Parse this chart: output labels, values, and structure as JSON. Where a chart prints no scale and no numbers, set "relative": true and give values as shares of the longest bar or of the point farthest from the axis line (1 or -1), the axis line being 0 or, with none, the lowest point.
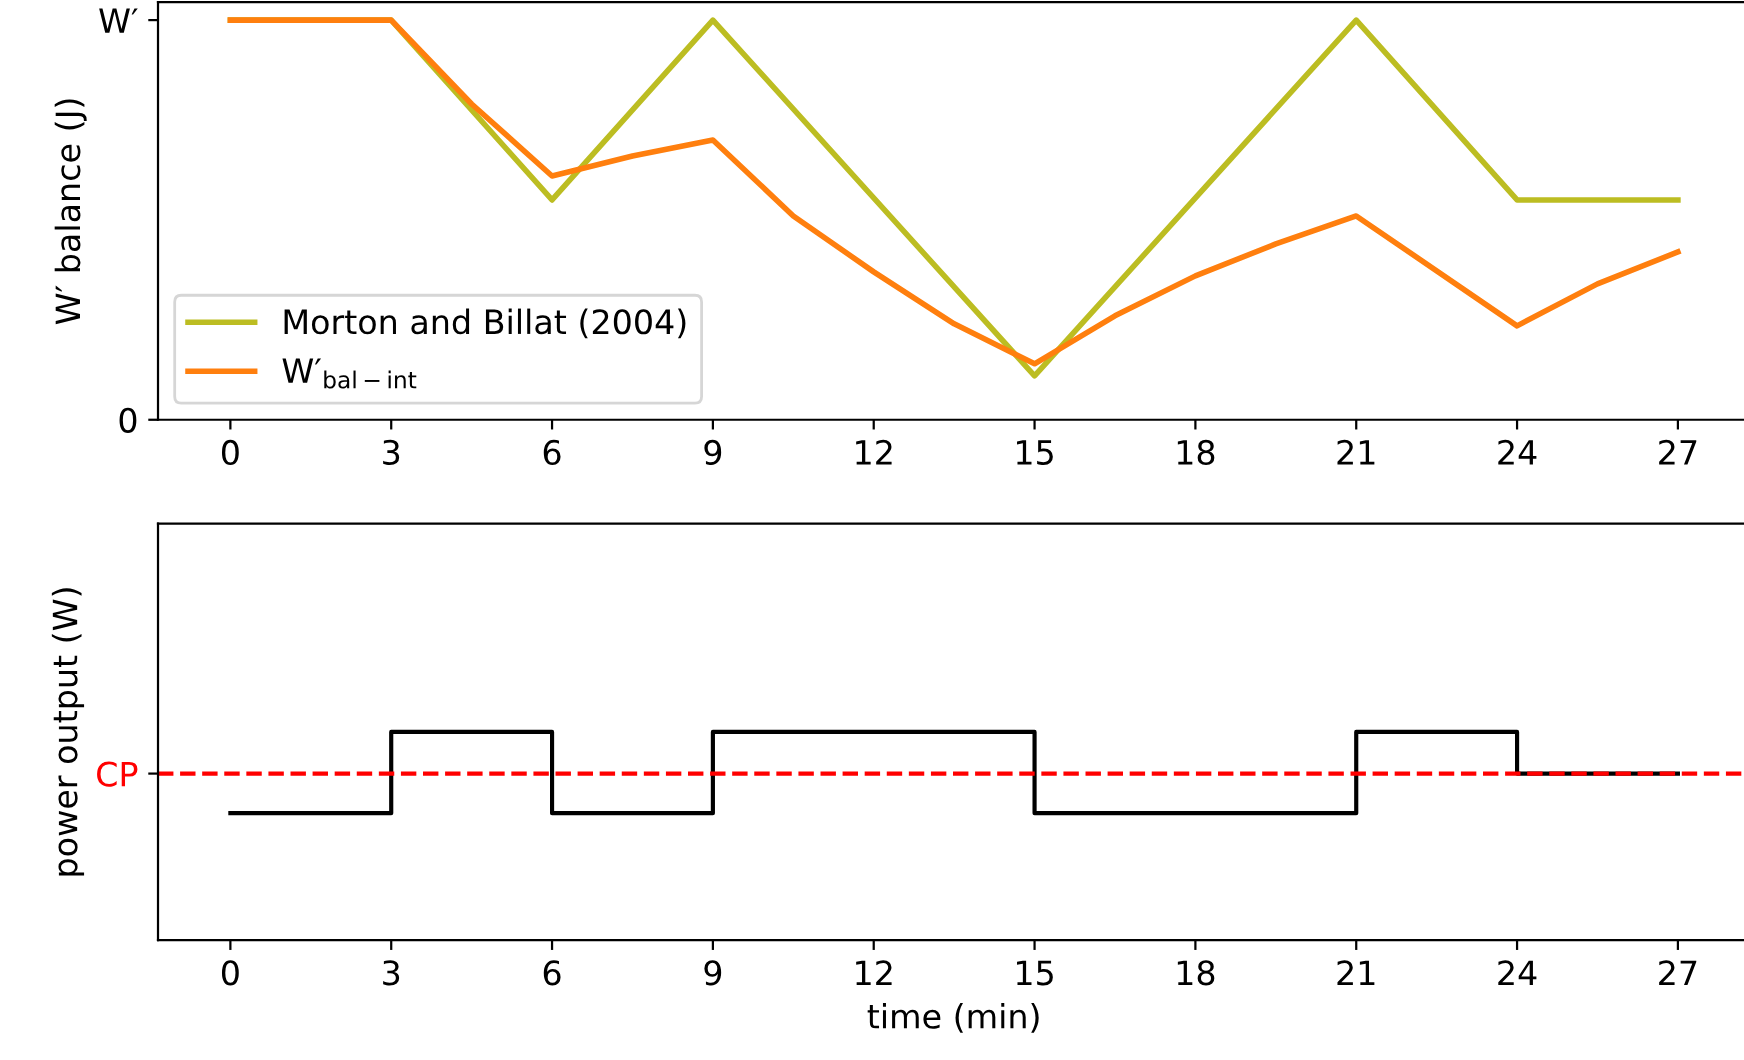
{
  "chart_data": [
    {
      "type": "line",
      "relative": true,
      "ylabel": "W′ balance (J)",
      "xlim": [
        -1.35,
        28.35
      ],
      "xticks": [
        0,
        3,
        6,
        9,
        12,
        15,
        18,
        21,
        24,
        27
      ],
      "annotations": [
        "0",
        "W′"
      ],
      "legend": "bottom left",
      "grid": false,
      "series": [
        {
          "name": "Morton and Billat (2004)",
          "color": "#bcbd22",
          "x": [
            0,
            3,
            6,
            9,
            15,
            21,
            24,
            27
          ],
          "values": [
            1,
            1,
            0.55,
            1,
            0.11,
            1,
            0.55,
            0.55
          ]
        },
        {
          "name": "W′$_{bal−int}$",
          "color": "#ff7f0e",
          "x": [
            0,
            3,
            4.5,
            6,
            7.5,
            9,
            10.5,
            12,
            13.5,
            15,
            16.5,
            18,
            19.5,
            21,
            24,
            25.5,
            27
          ],
          "values": [
            1,
            1,
            0.79,
            0.61,
            0.66,
            0.7,
            0.51,
            0.37,
            0.24,
            0.14,
            0.26,
            0.36,
            0.44,
            0.51,
            0.235,
            0.34,
            0.42
          ]
        }
      ]
    },
    {
      "type": "step",
      "relative": true,
      "xlabel": "time (min)",
      "ylabel": "power output (W)",
      "xlim": [
        -1.35,
        28.35
      ],
      "xticks": [
        0,
        3,
        6,
        9,
        12,
        15,
        18,
        21,
        24,
        27
      ],
      "tick_labels": "x",
      "grid": false,
      "series": [
        {
          "color": "#000000",
          "x": [
            0,
            3,
            6,
            9,
            15,
            21,
            24,
            27
          ],
          "values": [
            0.61,
            1,
            0.61,
            1,
            0.61,
            1,
            0.8,
            0.8
          ]
        }
      ],
      "ref_lines": [
        {
          "axis": "y",
          "value": 0.8,
          "label": "CP",
          "color": "#ff0000",
          "line_style": "dashed"
        }
      ]
    }
  ]
}
